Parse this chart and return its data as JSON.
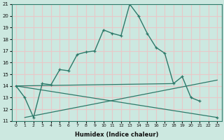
{
  "xlabel": "Humidex (Indice chaleur)",
  "bg_color": "#cce8e0",
  "grid_color": "#e8c8c8",
  "line_color": "#2d7a6a",
  "x": [
    0,
    1,
    2,
    3,
    4,
    5,
    6,
    7,
    8,
    9,
    10,
    11,
    12,
    13,
    14,
    15,
    16,
    17,
    18,
    19,
    20,
    21,
    22,
    23
  ],
  "line1": [
    14.0,
    13.0,
    11.3,
    14.2,
    14.1,
    15.4,
    15.3,
    16.7,
    16.9,
    17.0,
    18.8,
    18.5,
    18.3,
    21.0,
    20.0,
    18.5,
    17.3,
    16.8,
    14.2,
    14.8,
    13.0,
    12.7,
    null,
    11.3
  ],
  "line2_x": [
    0,
    23
  ],
  "line2_y": [
    14.0,
    11.3
  ],
  "line3_x": [
    1,
    23
  ],
  "line3_y": [
    11.3,
    14.5
  ],
  "line4_x": [
    0,
    18
  ],
  "line4_y": [
    14.0,
    14.2
  ],
  "ylim_min": 11,
  "ylim_max": 21,
  "yticks": [
    11,
    12,
    13,
    14,
    15,
    16,
    17,
    18,
    19,
    20,
    21
  ],
  "xticks": [
    0,
    1,
    2,
    3,
    4,
    5,
    6,
    7,
    8,
    9,
    10,
    11,
    12,
    13,
    14,
    15,
    16,
    17,
    18,
    19,
    20,
    21,
    22,
    23
  ]
}
